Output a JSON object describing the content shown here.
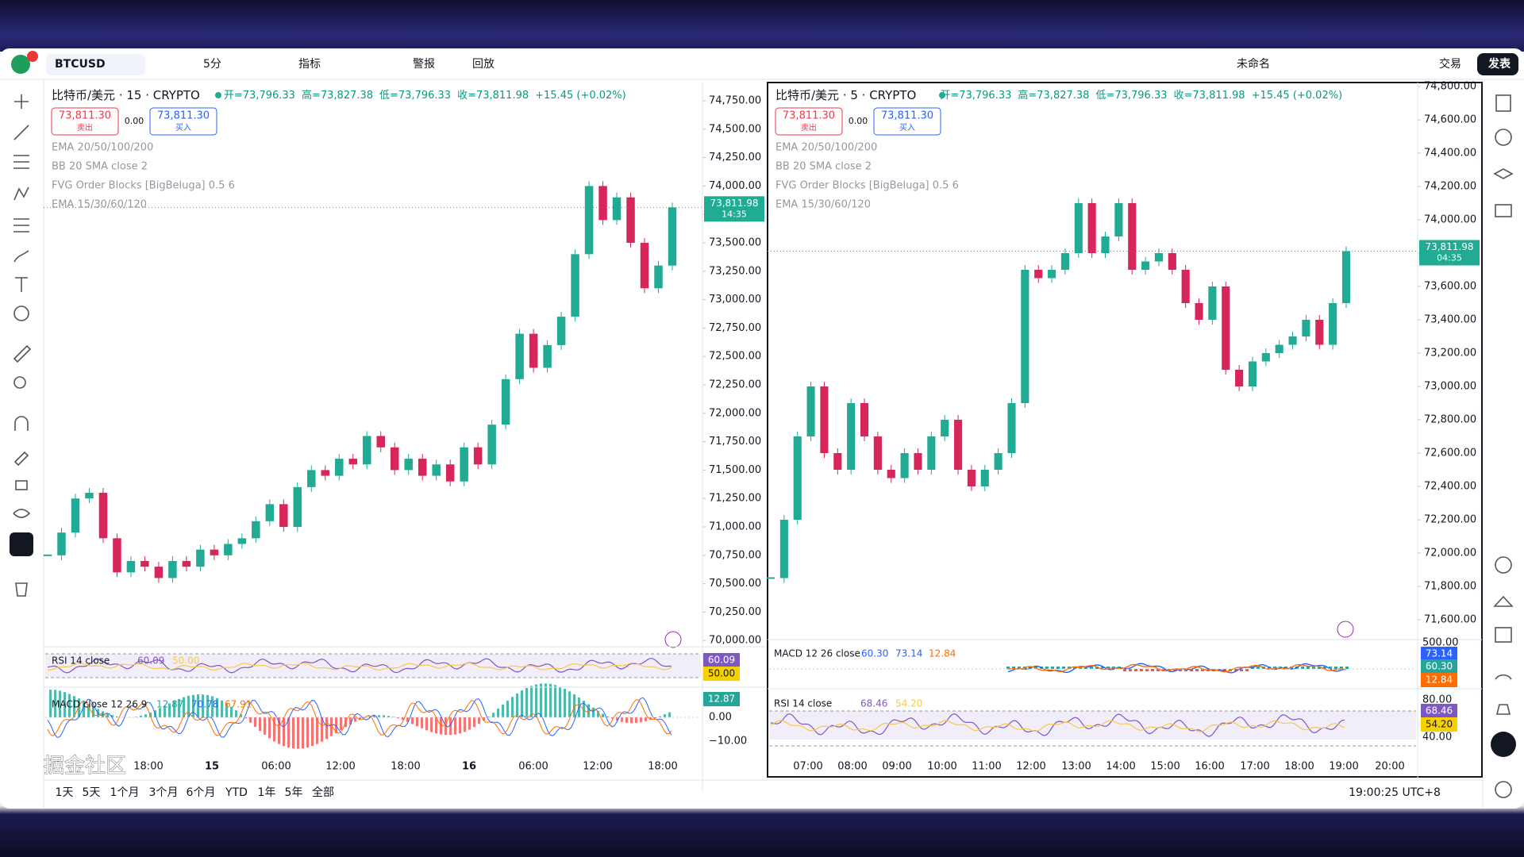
{
  "toolbar": {
    "symbol": "BTCUSD",
    "interval": "5分",
    "indicators": "指标",
    "alerts": "警报",
    "replay": "回放",
    "layout_name": "未命名",
    "trade": "交易",
    "publish": "发表"
  },
  "left_chart": {
    "title": "比特币/美元 · 15 · CRYPTO",
    "ohlc": [
      "开=73,796.33",
      "高=73,827.38",
      "低=73,796.33",
      "收=73,811.98"
    ],
    "change": "+15.45 (+0.02%)",
    "sell": {
      "price": "73,811.30",
      "label": "卖出"
    },
    "spread": "0.00",
    "buy": {
      "price": "73,811.30",
      "label": "买入"
    },
    "indicators": [
      "EMA 20/50/100/200",
      "BB 20 SMA close 2",
      "FVG Order Blocks [BigBeluga] 0.5 6",
      "EMA 15/30/60/120"
    ],
    "last_price": {
      "price": "73,811.98",
      "countdown": "14:35"
    },
    "closes": [
      70750,
      70950,
      71250,
      71300,
      70900,
      70600,
      70700,
      70650,
      70550,
      70700,
      70650,
      70800,
      70750,
      70850,
      70900,
      71050,
      71200,
      71000,
      71350,
      71500,
      71450,
      71600,
      71550,
      71800,
      71700,
      71500,
      71600,
      71450,
      71550,
      71400,
      71700,
      71550,
      71900,
      72300,
      72700,
      72400,
      72600,
      72850,
      73400,
      74000,
      73700,
      73900,
      73500,
      73100,
      73300,
      73811.98
    ],
    "price_ticks": [
      {
        "value": 74750,
        "label": "74,750.00"
      },
      {
        "value": 74500,
        "label": "74,500.00"
      },
      {
        "value": 74250,
        "label": "74,250.00"
      },
      {
        "value": 74000,
        "label": "74,000.00"
      },
      {
        "value": 73750,
        "label": "73,750.00"
      },
      {
        "value": 73500,
        "label": "73,500.00"
      },
      {
        "value": 73250,
        "label": "73,250.00"
      },
      {
        "value": 73000,
        "label": "73,000.00"
      },
      {
        "value": 72750,
        "label": "72,750.00"
      },
      {
        "value": 72500,
        "label": "72,500.00"
      },
      {
        "value": 72250,
        "label": "72,250.00"
      },
      {
        "value": 72000,
        "label": "72,000.00"
      },
      {
        "value": 71750,
        "label": "71,750.00"
      },
      {
        "value": 71500,
        "label": "71,500.00"
      },
      {
        "value": 71250,
        "label": "71,250.00"
      },
      {
        "value": 71000,
        "label": "71,000.00"
      },
      {
        "value": 70750,
        "label": "70,750.00"
      },
      {
        "value": 70500,
        "label": "70,500.00"
      },
      {
        "value": 70250,
        "label": "70,250.00"
      },
      {
        "value": 70000,
        "label": "70,000.00"
      }
    ],
    "time_labels": [
      "18:00",
      "15",
      "06:00",
      "12:00",
      "18:00",
      "16",
      "06:00",
      "12:00",
      "18:00"
    ],
    "rsi": {
      "label": "RSI 14 close",
      "values": [
        "60.09",
        "50.00"
      ]
    },
    "macd": {
      "label": "MACD close 12 26 9",
      "values": [
        "12.87",
        "70.78",
        "67.91"
      ],
      "axis": [
        "0.00",
        "−10.00"
      ]
    }
  },
  "right_chart": {
    "title": "比特币/美元 · 5 · CRYPTO",
    "ohlc": [
      "开=73,796.33",
      "高=73,827.38",
      "低=73,796.33",
      "收=73,811.98"
    ],
    "change": "+15.45 (+0.02%)",
    "sell": {
      "price": "73,811.30",
      "label": "卖出"
    },
    "spread": "0.00",
    "buy": {
      "price": "73,811.30",
      "label": "买入"
    },
    "indicators": [
      "EMA 20/50/100/200",
      "BB 20 SMA close 2",
      "FVG Order Blocks [BigBeluga] 0.5 6",
      "EMA 15/30/60/120"
    ],
    "last_price": {
      "price": "73,811.98",
      "countdown": "04:35"
    },
    "closes": [
      71850,
      72200,
      72700,
      73000,
      72600,
      72500,
      72900,
      72700,
      72500,
      72450,
      72600,
      72500,
      72700,
      72800,
      72500,
      72400,
      72500,
      72600,
      72900,
      73700,
      73650,
      73700,
      73800,
      74100,
      73800,
      73900,
      74100,
      73700,
      73750,
      73800,
      73700,
      73500,
      73400,
      73600,
      73100,
      73000,
      73150,
      73200,
      73250,
      73300,
      73400,
      73250,
      73500,
      73811.98
    ],
    "price_ticks": [
      {
        "value": 74800,
        "label": "74,800.00"
      },
      {
        "value": 74600,
        "label": "74,600.00"
      },
      {
        "value": 74400,
        "label": "74,400.00"
      },
      {
        "value": 74200,
        "label": "74,200.00"
      },
      {
        "value": 74000,
        "label": "74,000.00"
      },
      {
        "value": 73800,
        "label": "73,800.00"
      },
      {
        "value": 73600,
        "label": "73,600.00"
      },
      {
        "value": 73400,
        "label": "73,400.00"
      },
      {
        "value": 73200,
        "label": "73,200.00"
      },
      {
        "value": 73000,
        "label": "73,000.00"
      },
      {
        "value": 72800,
        "label": "72,800.00"
      },
      {
        "value": 72600,
        "label": "72,600.00"
      },
      {
        "value": 72400,
        "label": "72,400.00"
      },
      {
        "value": 72200,
        "label": "72,200.00"
      },
      {
        "value": 72000,
        "label": "72,000.00"
      },
      {
        "value": 71800,
        "label": "71,800.00"
      },
      {
        "value": 71600,
        "label": "71,600.00"
      }
    ],
    "time_labels": [
      "07:00",
      "08:00",
      "09:00",
      "10:00",
      "11:00",
      "12:00",
      "13:00",
      "14:00",
      "15:00",
      "16:00",
      "17:00",
      "18:00",
      "19:00",
      "20:00"
    ],
    "macd": {
      "label": "MACD 12 26 close",
      "values": [
        "60.30",
        "73.14",
        "12.84"
      ],
      "axis": [
        "500.00"
      ]
    },
    "rsi": {
      "label": "RSI 14 close",
      "values": [
        "68.46",
        "54.20"
      ],
      "axis": [
        "80.00",
        "40.00"
      ]
    }
  },
  "bottom_bar": {
    "ranges": [
      "1天",
      "5天",
      "1个月",
      "3个月",
      "6个月",
      "YTD",
      "1年",
      "5年",
      "全部"
    ],
    "clock": "19:00:25 UTC+8"
  },
  "watermark": "掘金社区"
}
